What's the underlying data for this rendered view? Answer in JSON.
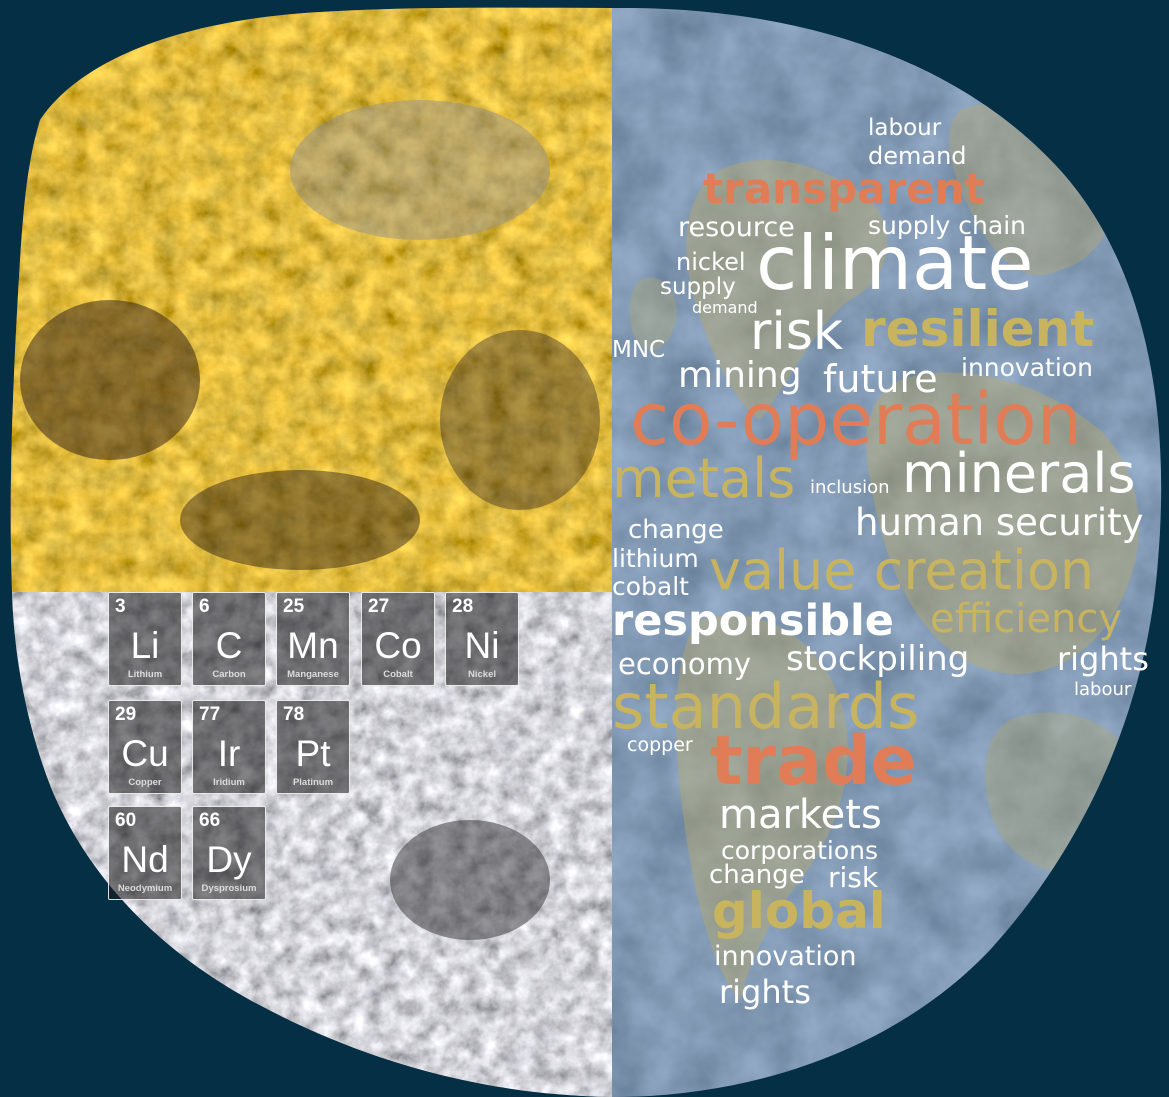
{
  "elements": [
    {
      "number": "3",
      "symbol": "Li",
      "name": "Lithium"
    },
    {
      "number": "6",
      "symbol": "C",
      "name": "Carbon"
    },
    {
      "number": "25",
      "symbol": "Mn",
      "name": "Manganese"
    },
    {
      "number": "27",
      "symbol": "Co",
      "name": "Cobalt"
    },
    {
      "number": "28",
      "symbol": "Ni",
      "name": "Nickel"
    },
    {
      "number": "29",
      "symbol": "Cu",
      "name": "Copper"
    },
    {
      "number": "77",
      "symbol": "Ir",
      "name": "Iridium"
    },
    {
      "number": "78",
      "symbol": "Pt",
      "name": "Platinum"
    },
    {
      "number": "60",
      "symbol": "Nd",
      "name": "Neodymium"
    },
    {
      "number": "66",
      "symbol": "Dy",
      "name": "Dysprosium"
    }
  ],
  "words": [
    "labour",
    "demand",
    "transparent",
    "resource",
    "supply chain",
    "nickel",
    "climate",
    "supply",
    "demand",
    "risk",
    "resilient",
    "MNC",
    "mining",
    "future",
    "innovation",
    "co-operation",
    "metals",
    "inclusion",
    "minerals",
    "change",
    "human security",
    "lithium",
    "value creation",
    "cobalt",
    "responsible",
    "efficiency",
    "economy",
    "stockpiling",
    "rights",
    "labour",
    "standards",
    "copper",
    "trade",
    "markets",
    "corporations",
    "change",
    "risk",
    "global",
    "innovation",
    "rights"
  ],
  "colors": {
    "background": "#052f45",
    "orange": "#e07d57",
    "gold": "#c8b35e",
    "white": "#ffffff"
  }
}
